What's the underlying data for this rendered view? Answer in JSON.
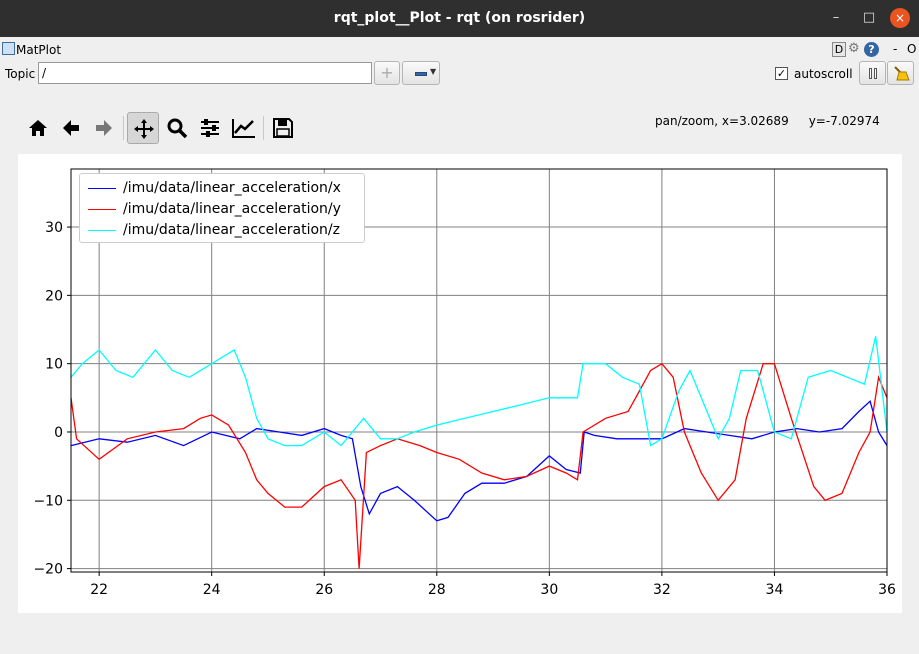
{
  "window": {
    "title": "rqt_plot__Plot - rqt (on rosrider)",
    "minimize_glyph": "–",
    "maximize_glyph": "□",
    "close_glyph": "×"
  },
  "header": {
    "plugin_label": "MatPlot",
    "d_label": "D",
    "help_label": "?",
    "dash_label": "-",
    "o_label": "O"
  },
  "topic": {
    "label": "Topic",
    "value": "/"
  },
  "controls": {
    "add_glyph": "+",
    "autoscroll_label": "autoscroll",
    "autoscroll_checked": true,
    "check_glyph": "✓"
  },
  "toolbar": {
    "icons": [
      "home-icon",
      "back-icon",
      "forward-icon",
      "pan-icon",
      "zoom-icon",
      "configure-subplots-icon",
      "edit-axis-icon",
      "save-icon"
    ],
    "pan_active": true
  },
  "coords": {
    "x_text": "pan/zoom, x=3.02689",
    "y_text": "y=-7.02974"
  },
  "chart_data": {
    "type": "line",
    "xlim": [
      21.5,
      36.0
    ],
    "ylim": [
      -20.5,
      38.5
    ],
    "xticks": [
      22,
      24,
      26,
      28,
      30,
      32,
      34,
      36
    ],
    "yticks": [
      -20,
      -10,
      0,
      10,
      20,
      30
    ],
    "grid": true,
    "legend_position": "top-left",
    "series": [
      {
        "name": "/imu/data/linear_acceleration/x",
        "color": "#0000ff",
        "x": [
          21.5,
          22.0,
          22.5,
          23.0,
          23.5,
          24.0,
          24.5,
          24.8,
          25.2,
          25.6,
          26.0,
          26.3,
          26.5,
          26.65,
          26.8,
          27.0,
          27.3,
          27.6,
          28.0,
          28.2,
          28.5,
          28.8,
          29.2,
          29.6,
          30.0,
          30.3,
          30.55,
          30.62,
          30.8,
          31.2,
          31.6,
          32.0,
          32.4,
          32.8,
          33.2,
          33.6,
          34.0,
          34.4,
          34.8,
          35.2,
          35.5,
          35.7,
          35.85,
          36.0
        ],
        "values": [
          -2,
          -1,
          -1.5,
          -0.5,
          -2,
          0,
          -1,
          0.5,
          0,
          -0.5,
          0.5,
          -0.5,
          -1,
          -8,
          -12,
          -9,
          -8,
          -10,
          -13,
          -12.5,
          -9,
          -7.5,
          -7.5,
          -6.5,
          -3.5,
          -5.5,
          -6,
          0,
          -0.5,
          -1,
          -1,
          -1,
          0.5,
          0,
          -0.5,
          -1,
          0,
          0.5,
          0,
          0.5,
          3,
          4.5,
          0,
          -2
        ]
      },
      {
        "name": "/imu/data/linear_acceleration/y",
        "color": "#ff0000",
        "x": [
          21.5,
          21.6,
          22.0,
          22.5,
          23.0,
          23.5,
          23.8,
          24.0,
          24.3,
          24.6,
          24.8,
          25.0,
          25.3,
          25.6,
          26.0,
          26.3,
          26.55,
          26.62,
          26.75,
          27.0,
          27.3,
          27.7,
          28.0,
          28.4,
          28.8,
          29.2,
          29.6,
          30.0,
          30.3,
          30.5,
          30.6,
          31.0,
          31.4,
          31.6,
          31.8,
          32.0,
          32.2,
          32.4,
          32.7,
          33.0,
          33.3,
          33.5,
          33.8,
          34.0,
          34.3,
          34.7,
          34.9,
          35.2,
          35.5,
          35.7,
          35.85,
          36.0
        ],
        "values": [
          5,
          -1,
          -4,
          -1,
          0,
          0.5,
          2,
          2.5,
          1,
          -3,
          -7,
          -9,
          -11,
          -11,
          -8,
          -7,
          -10,
          -20,
          -3,
          -2,
          -1,
          -2,
          -3,
          -4,
          -6,
          -7,
          -6.5,
          -5,
          -6,
          -7,
          0,
          2,
          3,
          6,
          9,
          10,
          8,
          0,
          -6,
          -10,
          -7,
          2,
          10,
          10,
          2,
          -8,
          -10,
          -9,
          -3,
          0,
          8,
          5
        ]
      },
      {
        "name": "/imu/data/linear_acceleration/z",
        "color": "#00ffff",
        "x": [
          21.5,
          21.7,
          22.0,
          22.3,
          22.6,
          23.0,
          23.3,
          23.6,
          24.0,
          24.4,
          24.6,
          24.8,
          25.0,
          25.3,
          25.6,
          26.0,
          26.3,
          26.5,
          26.7,
          27.0,
          27.3,
          27.6,
          28.0,
          28.5,
          29.0,
          29.5,
          30.0,
          30.3,
          30.5,
          30.6,
          31.0,
          31.3,
          31.6,
          31.8,
          32.0,
          32.3,
          32.5,
          32.7,
          33.0,
          33.2,
          33.4,
          33.7,
          34.0,
          34.3,
          34.6,
          35.0,
          35.3,
          35.6,
          35.8,
          36.0
        ],
        "values": [
          8,
          10,
          12,
          9,
          8,
          12,
          9,
          8,
          10,
          12,
          8,
          2,
          -1,
          -2,
          -2,
          0,
          -2,
          0,
          2,
          -1,
          -1,
          0,
          1,
          2,
          3,
          4,
          5,
          5,
          5,
          10,
          10,
          8,
          7,
          -2,
          -1,
          6,
          9,
          5,
          -1,
          2,
          9,
          9,
          0,
          -1,
          8,
          9,
          8,
          7,
          14,
          0
        ]
      }
    ]
  }
}
